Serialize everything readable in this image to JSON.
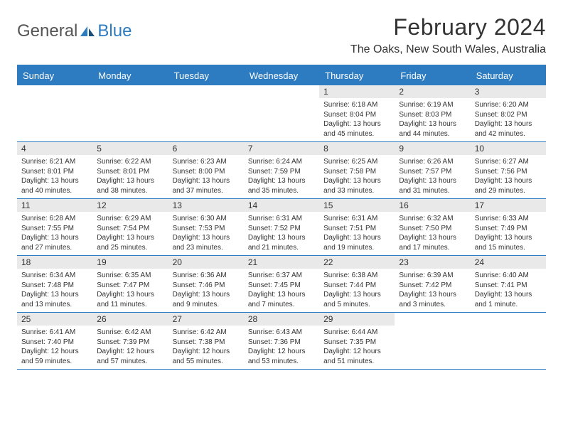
{
  "logo": {
    "textA": "General",
    "textB": "Blue"
  },
  "title": "February 2024",
  "location": "The Oaks, New South Wales, Australia",
  "colors": {
    "accent": "#2d7bc0",
    "daynum_bg": "#e9e9e9",
    "text": "#333333"
  },
  "dow": [
    "Sunday",
    "Monday",
    "Tuesday",
    "Wednesday",
    "Thursday",
    "Friday",
    "Saturday"
  ],
  "weeks": [
    [
      {
        "n": "",
        "empty": true
      },
      {
        "n": "",
        "empty": true
      },
      {
        "n": "",
        "empty": true
      },
      {
        "n": "",
        "empty": true
      },
      {
        "n": "1",
        "sunrise": "6:18 AM",
        "sunset": "8:04 PM",
        "daylight": "13 hours and 45 minutes."
      },
      {
        "n": "2",
        "sunrise": "6:19 AM",
        "sunset": "8:03 PM",
        "daylight": "13 hours and 44 minutes."
      },
      {
        "n": "3",
        "sunrise": "6:20 AM",
        "sunset": "8:02 PM",
        "daylight": "13 hours and 42 minutes."
      }
    ],
    [
      {
        "n": "4",
        "sunrise": "6:21 AM",
        "sunset": "8:01 PM",
        "daylight": "13 hours and 40 minutes."
      },
      {
        "n": "5",
        "sunrise": "6:22 AM",
        "sunset": "8:01 PM",
        "daylight": "13 hours and 38 minutes."
      },
      {
        "n": "6",
        "sunrise": "6:23 AM",
        "sunset": "8:00 PM",
        "daylight": "13 hours and 37 minutes."
      },
      {
        "n": "7",
        "sunrise": "6:24 AM",
        "sunset": "7:59 PM",
        "daylight": "13 hours and 35 minutes."
      },
      {
        "n": "8",
        "sunrise": "6:25 AM",
        "sunset": "7:58 PM",
        "daylight": "13 hours and 33 minutes."
      },
      {
        "n": "9",
        "sunrise": "6:26 AM",
        "sunset": "7:57 PM",
        "daylight": "13 hours and 31 minutes."
      },
      {
        "n": "10",
        "sunrise": "6:27 AM",
        "sunset": "7:56 PM",
        "daylight": "13 hours and 29 minutes."
      }
    ],
    [
      {
        "n": "11",
        "sunrise": "6:28 AM",
        "sunset": "7:55 PM",
        "daylight": "13 hours and 27 minutes."
      },
      {
        "n": "12",
        "sunrise": "6:29 AM",
        "sunset": "7:54 PM",
        "daylight": "13 hours and 25 minutes."
      },
      {
        "n": "13",
        "sunrise": "6:30 AM",
        "sunset": "7:53 PM",
        "daylight": "13 hours and 23 minutes."
      },
      {
        "n": "14",
        "sunrise": "6:31 AM",
        "sunset": "7:52 PM",
        "daylight": "13 hours and 21 minutes."
      },
      {
        "n": "15",
        "sunrise": "6:31 AM",
        "sunset": "7:51 PM",
        "daylight": "13 hours and 19 minutes."
      },
      {
        "n": "16",
        "sunrise": "6:32 AM",
        "sunset": "7:50 PM",
        "daylight": "13 hours and 17 minutes."
      },
      {
        "n": "17",
        "sunrise": "6:33 AM",
        "sunset": "7:49 PM",
        "daylight": "13 hours and 15 minutes."
      }
    ],
    [
      {
        "n": "18",
        "sunrise": "6:34 AM",
        "sunset": "7:48 PM",
        "daylight": "13 hours and 13 minutes."
      },
      {
        "n": "19",
        "sunrise": "6:35 AM",
        "sunset": "7:47 PM",
        "daylight": "13 hours and 11 minutes."
      },
      {
        "n": "20",
        "sunrise": "6:36 AM",
        "sunset": "7:46 PM",
        "daylight": "13 hours and 9 minutes."
      },
      {
        "n": "21",
        "sunrise": "6:37 AM",
        "sunset": "7:45 PM",
        "daylight": "13 hours and 7 minutes."
      },
      {
        "n": "22",
        "sunrise": "6:38 AM",
        "sunset": "7:44 PM",
        "daylight": "13 hours and 5 minutes."
      },
      {
        "n": "23",
        "sunrise": "6:39 AM",
        "sunset": "7:42 PM",
        "daylight": "13 hours and 3 minutes."
      },
      {
        "n": "24",
        "sunrise": "6:40 AM",
        "sunset": "7:41 PM",
        "daylight": "13 hours and 1 minute."
      }
    ],
    [
      {
        "n": "25",
        "sunrise": "6:41 AM",
        "sunset": "7:40 PM",
        "daylight": "12 hours and 59 minutes."
      },
      {
        "n": "26",
        "sunrise": "6:42 AM",
        "sunset": "7:39 PM",
        "daylight": "12 hours and 57 minutes."
      },
      {
        "n": "27",
        "sunrise": "6:42 AM",
        "sunset": "7:38 PM",
        "daylight": "12 hours and 55 minutes."
      },
      {
        "n": "28",
        "sunrise": "6:43 AM",
        "sunset": "7:36 PM",
        "daylight": "12 hours and 53 minutes."
      },
      {
        "n": "29",
        "sunrise": "6:44 AM",
        "sunset": "7:35 PM",
        "daylight": "12 hours and 51 minutes."
      },
      {
        "n": "",
        "empty": true
      },
      {
        "n": "",
        "empty": true
      }
    ]
  ]
}
